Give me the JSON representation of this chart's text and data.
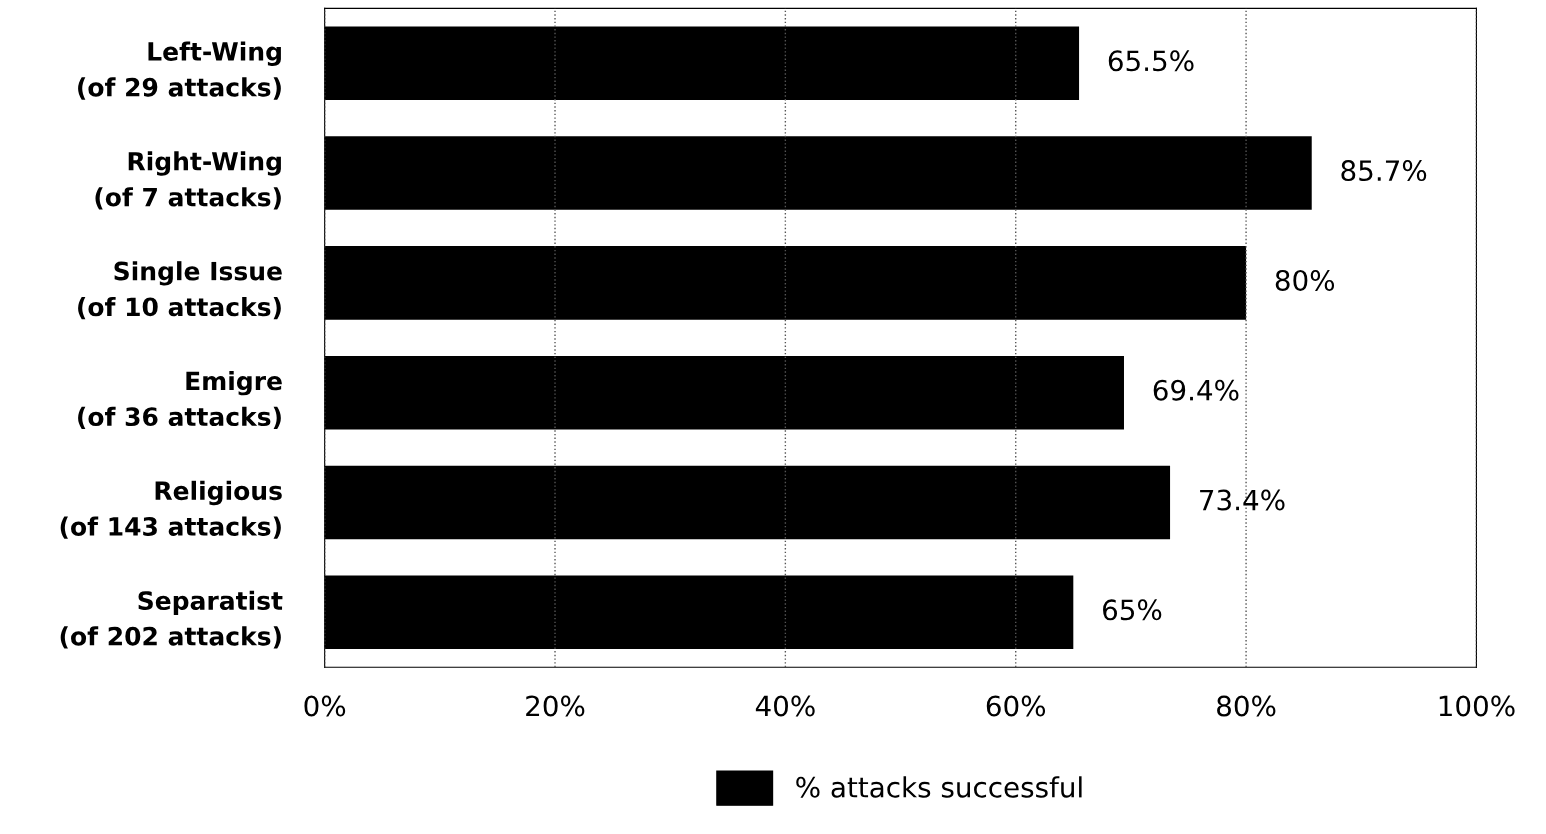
{
  "chart_data": {
    "type": "bar",
    "orientation": "horizontal",
    "categories": [
      "Left-Wing\n(of 29 attacks)",
      "Right-Wing\n(of 7 attacks)",
      "Single Issue\n(of 10 attacks)",
      "Emigre\n(of 36 attacks)",
      "Religious\n(of 143 attacks)",
      "Separatist\n(of 202 attacks)"
    ],
    "series": [
      {
        "name": "% attacks successful",
        "color": "#000000",
        "values": [
          65.5,
          85.7,
          80,
          69.4,
          73.4,
          65
        ],
        "value_labels": [
          "65.5%",
          "85.7%",
          "80%",
          "69.4%",
          "73.4%",
          "65%"
        ]
      }
    ],
    "xlim": [
      0,
      100
    ],
    "xticks": [
      {
        "value": 0,
        "label": "0%"
      },
      {
        "value": 20,
        "label": "20%"
      },
      {
        "value": 40,
        "label": "40%"
      },
      {
        "value": 60,
        "label": "60%"
      },
      {
        "value": 80,
        "label": "80%"
      },
      {
        "value": 100,
        "label": "100%"
      }
    ],
    "grid": "x",
    "legend": "bottom"
  }
}
